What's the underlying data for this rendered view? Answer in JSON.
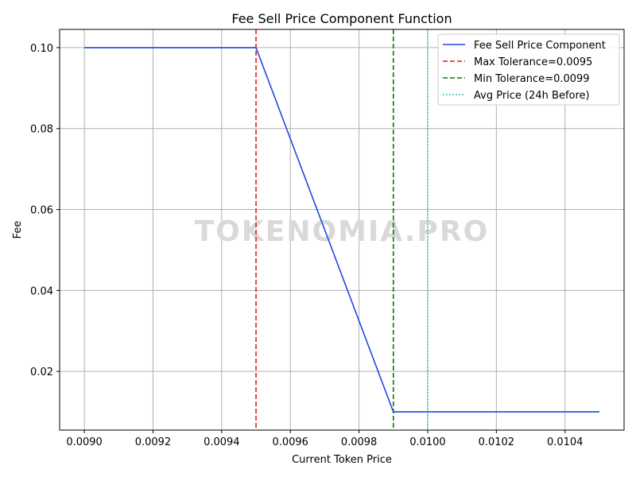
{
  "chart_data": {
    "type": "line",
    "title": "Fee Sell Price Component Function",
    "xlabel": "Current Token Price",
    "ylabel": "Fee",
    "xlim": [
      0.008928,
      0.010572
    ],
    "ylim": [
      0.0055,
      0.1045
    ],
    "grid": true,
    "legend_position": "top-right",
    "x_ticks": [
      "0.0090",
      "0.0092",
      "0.0094",
      "0.0096",
      "0.0098",
      "0.0100",
      "0.0102",
      "0.0104"
    ],
    "y_ticks": [
      "0.02",
      "0.04",
      "0.06",
      "0.08",
      "0.10"
    ],
    "x_tick_values": [
      0.009,
      0.0092,
      0.0094,
      0.0096,
      0.0098,
      0.01,
      0.0102,
      0.0104
    ],
    "y_tick_values": [
      0.02,
      0.04,
      0.06,
      0.08,
      0.1
    ],
    "series": [
      {
        "name": "Fee Sell Price Component",
        "color": "#1f49e0",
        "style": "solid",
        "x": [
          0.009,
          0.0095,
          0.0099,
          0.0105
        ],
        "y": [
          0.1,
          0.1,
          0.01,
          0.01
        ]
      }
    ],
    "vlines": [
      {
        "name": "Max Tolerance=0.0095",
        "x": 0.0095,
        "color": "#e41a1c",
        "style": "dashed"
      },
      {
        "name": "Min Tolerance=0.0099",
        "x": 0.0099,
        "color": "#008000",
        "style": "dashed"
      },
      {
        "name": "Avg Price (24h Before)",
        "x": 0.01,
        "color": "#20b2aa",
        "style": "dotted"
      }
    ]
  },
  "watermark": "TOKENOMIA.PRO"
}
